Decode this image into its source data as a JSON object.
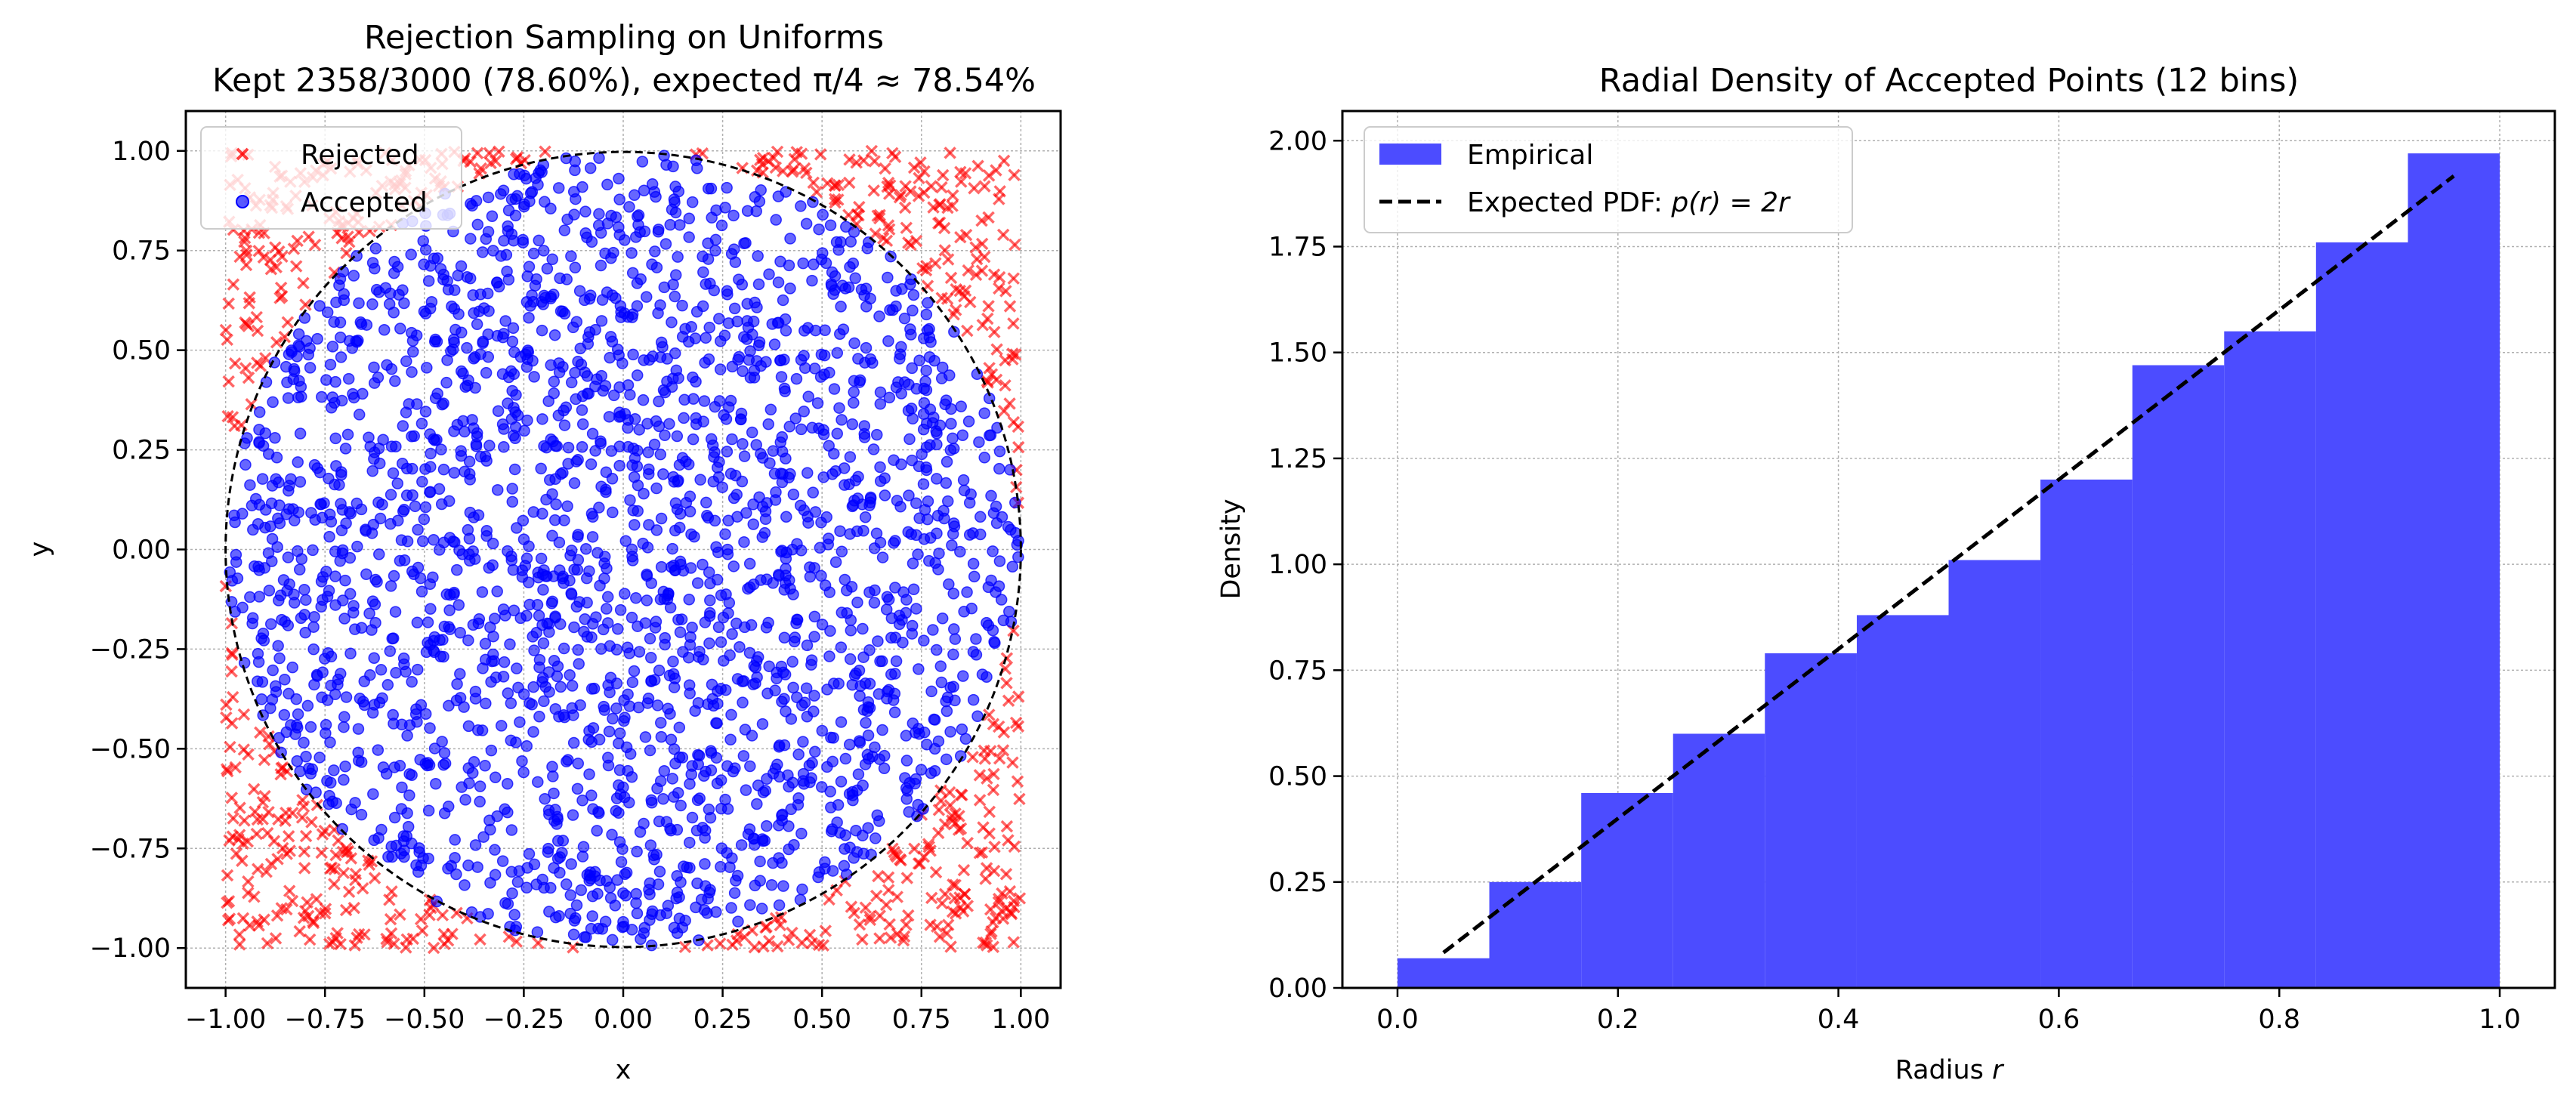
{
  "colors": {
    "accepted": "#0000ff",
    "rejected": "#ff0000",
    "histogram": "#4c4cff",
    "expected_line": "#000000",
    "grid": "#b0b0b0"
  },
  "chart_data": [
    {
      "type": "scatter",
      "title_line1": "Rejection Sampling on Uniforms",
      "title_line2": "Kept 2358/3000 (78.60%), expected π/4 ≈ 78.54%",
      "xlabel": "x",
      "ylabel": "y",
      "xlim": [
        -1.1,
        1.1
      ],
      "ylim": [
        -1.1,
        1.1
      ],
      "xticks": [
        -1.0,
        -0.75,
        -0.5,
        -0.25,
        0.0,
        0.25,
        0.5,
        0.75,
        1.0
      ],
      "yticks": [
        -1.0,
        -0.75,
        -0.5,
        -0.25,
        0.0,
        0.25,
        0.5,
        0.75,
        1.0
      ],
      "xtick_labels": [
        "−1.00",
        "−0.75",
        "−0.50",
        "−0.25",
        "0.00",
        "0.25",
        "0.50",
        "0.75",
        "1.00"
      ],
      "ytick_labels": [
        "−1.00",
        "−0.75",
        "−0.50",
        "−0.25",
        "0.00",
        "0.25",
        "0.50",
        "0.75",
        "1.00"
      ],
      "grid": true,
      "legend_position": "upper-left",
      "series": [
        {
          "name": "Rejected",
          "marker": "x",
          "color": "#ff0000",
          "count": 642
        },
        {
          "name": "Accepted",
          "marker": "o",
          "color": "#0000ff",
          "count": 2358
        }
      ],
      "total_samples": 3000,
      "circle": {
        "center": [
          0,
          0
        ],
        "radius": 1.0,
        "style": "dashed"
      }
    },
    {
      "type": "bar",
      "title": "Radial Density of Accepted Points (12 bins)",
      "xlabel_prefix": "Radius ",
      "xlabel_var": "r",
      "ylabel": "Density",
      "xlim": [
        -0.05,
        1.05
      ],
      "ylim": [
        0,
        2.07
      ],
      "xticks": [
        0.0,
        0.2,
        0.4,
        0.6,
        0.8,
        1.0
      ],
      "yticks": [
        0.0,
        0.25,
        0.5,
        0.75,
        1.0,
        1.25,
        1.5,
        1.75,
        2.0
      ],
      "xtick_labels": [
        "0.0",
        "0.2",
        "0.4",
        "0.6",
        "0.8",
        "1.0"
      ],
      "ytick_labels": [
        "0.00",
        "0.25",
        "0.50",
        "0.75",
        "1.00",
        "1.25",
        "1.50",
        "1.75",
        "2.00"
      ],
      "grid": true,
      "legend_position": "upper-left",
      "bin_edges": [
        0.0,
        0.0833,
        0.1667,
        0.25,
        0.3333,
        0.4167,
        0.5,
        0.5833,
        0.6667,
        0.75,
        0.8333,
        0.9167,
        1.0
      ],
      "values": [
        0.07,
        0.25,
        0.46,
        0.6,
        0.79,
        0.88,
        1.01,
        1.2,
        1.47,
        1.55,
        1.76,
        1.97
      ],
      "series": [
        {
          "name": "Empirical",
          "kind": "histogram",
          "color": "#4c4cff"
        },
        {
          "name_prefix": "Expected PDF: ",
          "name_formula": "p(r) = 2r",
          "kind": "line",
          "style": "dashed",
          "color": "#000000",
          "x": [
            0.0417,
            0.9583
          ],
          "y": [
            0.0833,
            1.9167
          ]
        }
      ]
    }
  ]
}
